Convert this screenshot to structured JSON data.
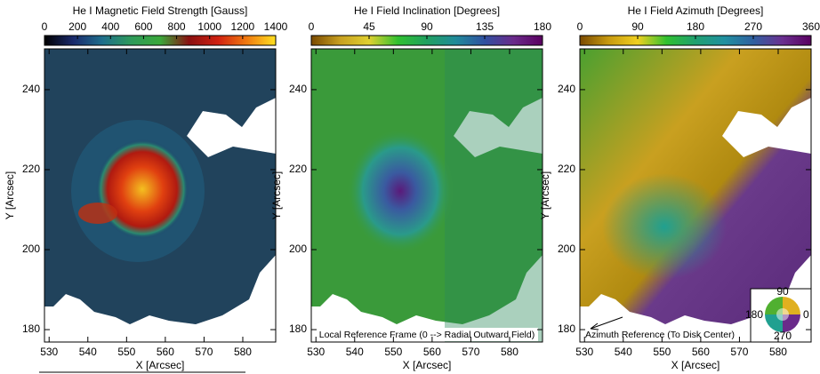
{
  "chart_data": [
    {
      "type": "heatmap",
      "title": "He I Magnetic Field Strength [Gauss]",
      "xlabel": "X [Arcsec]",
      "ylabel": "Y [Arcsec]",
      "xlim": [
        528.8,
        588.5
      ],
      "ylim": [
        176.9,
        250.2
      ],
      "xticks": [
        530,
        540,
        550,
        560,
        570,
        580
      ],
      "yticks": [
        180,
        200,
        220,
        240
      ],
      "colorbar": {
        "lim": [
          0,
          1400
        ],
        "ticks": [
          0,
          200,
          400,
          600,
          800,
          1000,
          1200,
          1400
        ],
        "colors": [
          "#000000",
          "#1a2a6c",
          "#1f6e8c",
          "#2e9a5a",
          "#3aa83a",
          "#8a1010",
          "#d02010",
          "#f07a10",
          "#ffe020"
        ]
      }
    },
    {
      "type": "heatmap",
      "title": "He I Field Inclination [Degrees]",
      "xlabel": "X [Arcsec]",
      "ylabel": "Y [Arcsec]",
      "xlim": [
        528.8,
        588.5
      ],
      "ylim": [
        176.9,
        250.2
      ],
      "xticks": [
        530,
        540,
        550,
        560,
        570,
        580
      ],
      "yticks": [
        180,
        200,
        220,
        240
      ],
      "colorbar": {
        "lim": [
          0,
          180
        ],
        "ticks": [
          0,
          45,
          90,
          135,
          180
        ],
        "colors": [
          "#7a4a00",
          "#c8a020",
          "#e0d030",
          "#30c030",
          "#20a060",
          "#208a9a",
          "#3050a0",
          "#6a2a8a",
          "#5a0060"
        ]
      },
      "annotation": "Local Reference Frame (0 --> Radial Outward Field)"
    },
    {
      "type": "heatmap",
      "title": "He I Field Azimuth [Degrees]",
      "xlabel": "X [Arcsec]",
      "ylabel": "Y [Arcsec]",
      "xlim": [
        528.8,
        588.5
      ],
      "ylim": [
        176.9,
        250.2
      ],
      "xticks": [
        530,
        540,
        550,
        560,
        570,
        580
      ],
      "yticks": [
        180,
        200,
        220,
        240
      ],
      "colorbar": {
        "lim": [
          0,
          360
        ],
        "ticks": [
          0,
          90,
          180,
          270,
          360
        ],
        "colors": [
          "#7a4a00",
          "#c89a10",
          "#f0d020",
          "#30c030",
          "#20a070",
          "#2090a0",
          "#3060a0",
          "#6a3090",
          "#5a0060"
        ]
      },
      "annotation": "Azimuth Reference (To Disk Center)",
      "wheel_labels": [
        90,
        180,
        0,
        270
      ]
    }
  ]
}
